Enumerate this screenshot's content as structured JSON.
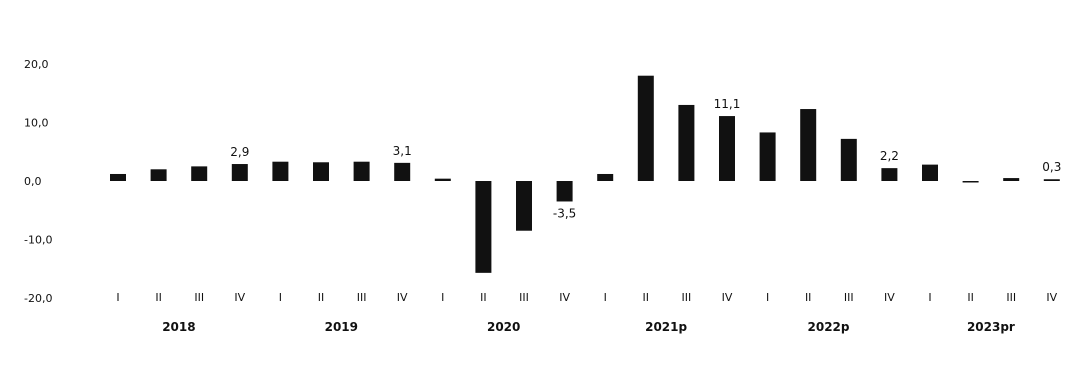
{
  "chart_data": {
    "type": "bar",
    "title": "",
    "subtitle": "",
    "xlabel": "",
    "ylabel": "",
    "ylim": [
      -20,
      20
    ],
    "yticks": [
      "20,0",
      "10,0",
      "0,0",
      "-10,0",
      "-20,0"
    ],
    "grid": false,
    "legend": "none",
    "bar_color": "#111111",
    "categories": [
      "I",
      "II",
      "III",
      "IV",
      "I",
      "II",
      "III",
      "IV",
      "I",
      "II",
      "III",
      "IV",
      "I",
      "II",
      "III",
      "IV",
      "I",
      "II",
      "III",
      "IV",
      "I",
      "II",
      "III",
      "IV"
    ],
    "years": [
      "2018",
      "2019",
      "2020",
      "2021p",
      "2022p",
      "2023pr"
    ],
    "series": [
      {
        "values": [
          1.2,
          2.0,
          2.5,
          2.9,
          3.3,
          3.2,
          3.3,
          3.1,
          0.4,
          -15.7,
          -8.5,
          -3.5,
          1.2,
          18.0,
          13.0,
          11.1,
          8.3,
          12.3,
          7.2,
          2.2,
          2.8,
          0.0,
          0.5,
          0.3
        ]
      }
    ],
    "data_labels": [
      {
        "index": 3,
        "text": "2,9"
      },
      {
        "index": 7,
        "text": "3,1"
      },
      {
        "index": 11,
        "text": "-3,5"
      },
      {
        "index": 15,
        "text": "11,1"
      },
      {
        "index": 19,
        "text": "2,2"
      },
      {
        "index": 23,
        "text": "0,3"
      }
    ]
  }
}
